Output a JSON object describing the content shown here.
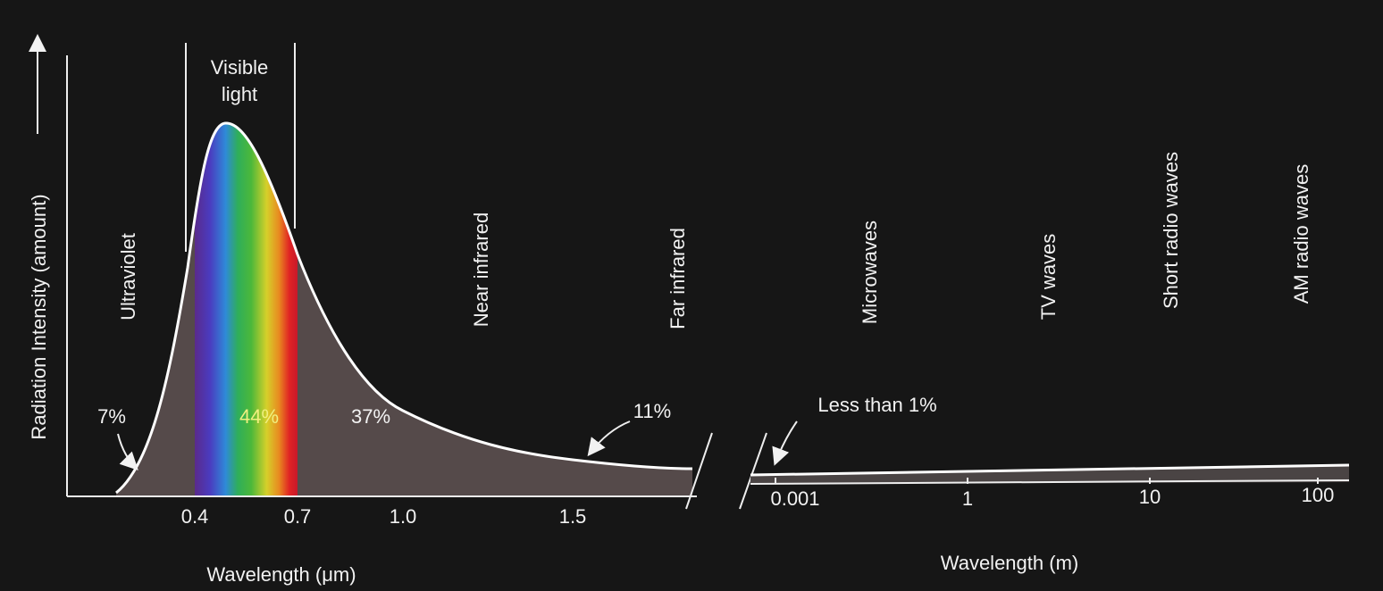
{
  "y_axis": {
    "label": "Radiation Intensity (amount)"
  },
  "left_axis": {
    "label": "Wavelength (μm)",
    "ticks": [
      "0.4",
      "0.7",
      "1.0",
      "1.5"
    ]
  },
  "right_axis": {
    "label": "Wavelength (m)",
    "ticks": [
      "0.001",
      "1",
      "10",
      "100"
    ]
  },
  "visible_band": {
    "lines": [
      "Visible",
      "light"
    ]
  },
  "regions": [
    "Ultraviolet",
    "Near infrared",
    "Far infrared",
    "Microwaves",
    "TV waves",
    "Short radio waves",
    "AM radio waves"
  ],
  "shares": [
    "7%",
    "44%",
    "37%",
    "11%",
    "Less than 1%"
  ]
}
